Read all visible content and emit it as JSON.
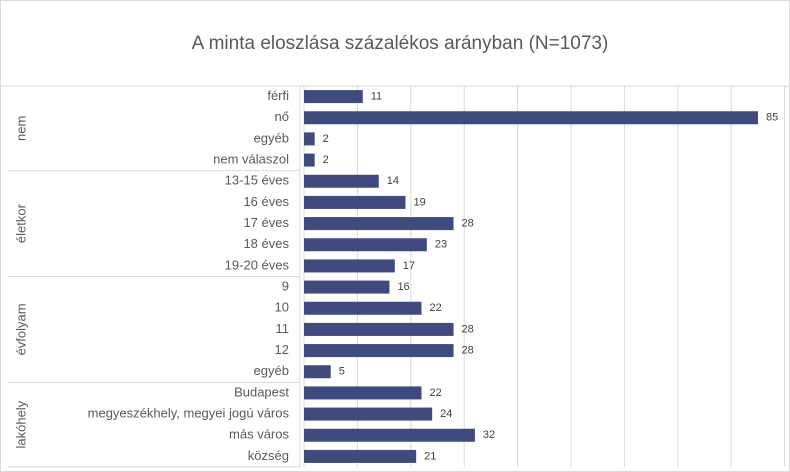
{
  "chart_data": {
    "type": "bar",
    "title": "A minta eloszlása százalékos arányban (N=1073)",
    "color": "#3f4b7c",
    "grid": true,
    "xlim": [
      0,
      91
    ],
    "xticks": [
      0,
      10,
      20,
      30,
      40,
      50,
      60,
      70,
      80,
      90
    ],
    "groups": [
      {
        "name": "nem",
        "categories": [
          "férfi",
          "nő",
          "egyéb",
          "nem válaszol"
        ],
        "values": [
          11,
          85,
          2,
          2
        ]
      },
      {
        "name": "életkor",
        "categories": [
          "13-15 éves",
          "16 éves",
          "17 éves",
          "18 éves",
          "19-20 éves"
        ],
        "values": [
          14,
          19,
          28,
          23,
          17
        ]
      },
      {
        "name": "évfolyam",
        "categories": [
          "9",
          "10",
          "11",
          "12",
          "egyéb"
        ],
        "values": [
          16,
          22,
          28,
          28,
          5
        ]
      },
      {
        "name": "lakóhely",
        "categories": [
          "Budapest",
          "megyeszékhely, megyei jogú város",
          "más város",
          "község"
        ],
        "values": [
          22,
          24,
          32,
          21
        ]
      }
    ]
  }
}
